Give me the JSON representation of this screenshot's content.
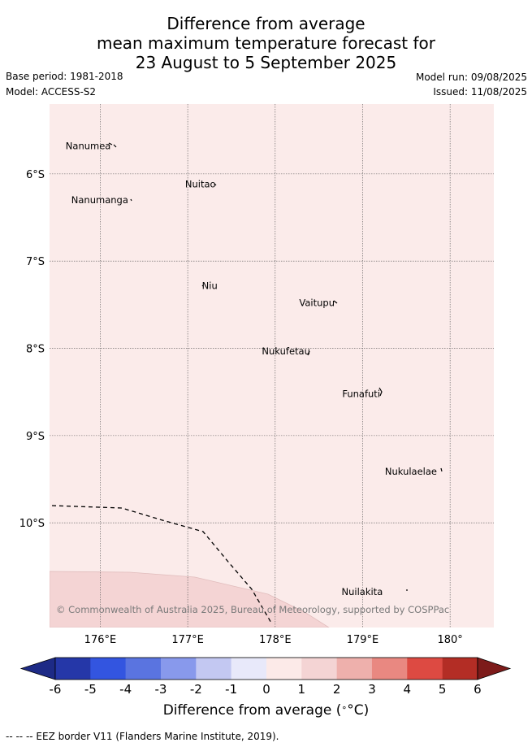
{
  "title": {
    "line1": "Difference from average",
    "line2": "mean maximum temperature forecast for",
    "line3": "23 August to 5 September 2025"
  },
  "meta": {
    "base_period": "Base period: 1981-2018",
    "model": "Model: ACCESS-S2",
    "model_run": "Model run: 09/08/2025",
    "issued": "Issued: 11/08/2025"
  },
  "axes": {
    "lat_labels": [
      "6°S",
      "7°S",
      "8°S",
      "9°S",
      "10°S"
    ],
    "lat_values": [
      -6,
      -7,
      -8,
      -9,
      -10
    ],
    "lon_labels": [
      "176°E",
      "177°E",
      "178°E",
      "179°E",
      "180°"
    ],
    "lon_values": [
      176,
      177,
      178,
      179,
      180
    ],
    "lon_range": [
      175.42,
      180.5
    ],
    "lat_range": [
      -11.2,
      -5.2
    ]
  },
  "places": [
    {
      "name": "Nanumea",
      "lon": 176.12,
      "lat": -5.68
    },
    {
      "name": "Nuitao",
      "lon": 177.32,
      "lat": -6.12
    },
    {
      "name": "Nanumanga",
      "lon": 176.32,
      "lat": -6.3
    },
    {
      "name": "Niu",
      "lon": 177.34,
      "lat": -7.28
    },
    {
      "name": "Vaitupu",
      "lon": 178.68,
      "lat": -7.48
    },
    {
      "name": "Nukufetau",
      "lon": 178.4,
      "lat": -8.03
    },
    {
      "name": "Funafuti",
      "lon": 179.2,
      "lat": -8.52
    },
    {
      "name": "Nukulaelae",
      "lon": 179.85,
      "lat": -9.41
    },
    {
      "name": "Nuilakita",
      "lon": 179.23,
      "lat": -10.79
    }
  ],
  "copyright": "© Commonwealth of Australia 2025, Bureau of Meteorology, supported by COSPPac",
  "colorbar": {
    "ticks": [
      "-6",
      "-5",
      "-4",
      "-3",
      "-2",
      "-1",
      "0",
      "1",
      "2",
      "3",
      "4",
      "5",
      "6"
    ],
    "colors": [
      "#2537a8",
      "#3355e0",
      "#5a74e0",
      "#8899ec",
      "#c3c8f2",
      "#e8e9fa",
      "#fceae8",
      "#f4d4d4",
      "#eeb0ac",
      "#e98881",
      "#dd4a42",
      "#b32d25"
    ],
    "under_color": "#1d2a86",
    "over_color": "#7d1b1a",
    "label": "Difference from average (",
    "label_unit": "°C)"
  },
  "colors": {
    "ocean_fill": "#fbebea",
    "lower_band_fill": "#f4d4d4"
  },
  "footer": "-- -- -- EEZ border V11 (Flanders Marine Institute, 2019)."
}
